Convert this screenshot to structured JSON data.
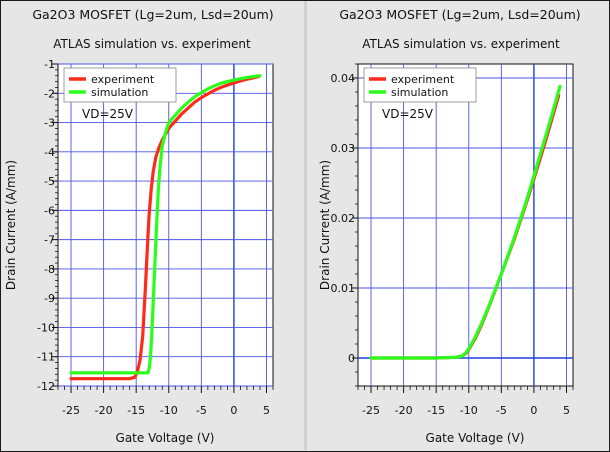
{
  "chart_data": [
    {
      "type": "line",
      "title": "Ga2O3 MOSFET (Lg=2um, Lsd=20um)",
      "subtitle": "ATLAS simulation vs. experiment",
      "annotation": "VD=25V",
      "xlabel": "Gate Voltage (V)",
      "ylabel": "Drain Current (A/mm)",
      "xlim": [
        -27,
        6
      ],
      "ylim": [
        -12,
        -1
      ],
      "xticks": [
        -25,
        -20,
        -15,
        -10,
        -5,
        0,
        5
      ],
      "yticks": [
        -1,
        -2,
        -3,
        -4,
        -5,
        -6,
        -7,
        -8,
        -9,
        -10,
        -11,
        -12
      ],
      "grid": true,
      "legend_position": "top-left",
      "series": [
        {
          "name": "experiment",
          "color": "#ff2a1a",
          "x": [
            -25,
            -20,
            -16,
            -15.2,
            -14.8,
            -14.4,
            -14.0,
            -13.8,
            -13.6,
            -13.4,
            -13.2,
            -13.0,
            -12.7,
            -12.4,
            -12.0,
            -11.5,
            -11.0,
            -10.0,
            -9.0,
            -8.0,
            -7.0,
            -6.0,
            -5.0,
            -4.0,
            -3.0,
            -2.0,
            -1.0,
            0.0,
            1.0,
            2.0,
            3.0,
            3.8
          ],
          "y": [
            -11.75,
            -11.75,
            -11.75,
            -11.7,
            -11.5,
            -11.1,
            -10.3,
            -9.5,
            -8.7,
            -7.8,
            -6.9,
            -6.1,
            -5.3,
            -4.7,
            -4.2,
            -3.85,
            -3.6,
            -3.2,
            -2.95,
            -2.7,
            -2.5,
            -2.3,
            -2.15,
            -2.02,
            -1.9,
            -1.8,
            -1.72,
            -1.65,
            -1.58,
            -1.52,
            -1.47,
            -1.43
          ]
        },
        {
          "name": "simulation",
          "color": "#2aff1a",
          "x": [
            -25,
            -20,
            -14,
            -13.2,
            -13.0,
            -12.8,
            -12.6,
            -12.4,
            -12.2,
            -12.0,
            -11.8,
            -11.6,
            -11.3,
            -11.0,
            -10.5,
            -10.0,
            -9.0,
            -8.0,
            -7.0,
            -6.0,
            -5.0,
            -4.0,
            -3.0,
            -2.0,
            -1.0,
            0.0,
            1.0,
            2.0,
            3.0,
            4.0
          ],
          "y": [
            -11.55,
            -11.55,
            -11.55,
            -11.55,
            -11.4,
            -11.0,
            -10.2,
            -9.2,
            -8.2,
            -7.2,
            -6.2,
            -5.3,
            -4.4,
            -3.8,
            -3.35,
            -3.0,
            -2.75,
            -2.5,
            -2.3,
            -2.12,
            -1.98,
            -1.85,
            -1.75,
            -1.66,
            -1.6,
            -1.55,
            -1.5,
            -1.46,
            -1.43,
            -1.4
          ]
        }
      ]
    },
    {
      "type": "line",
      "title": "Ga2O3 MOSFET (Lg=2um, Lsd=20um)",
      "subtitle": "ATLAS simulation vs. experiment",
      "annotation": "VD=25V",
      "xlabel": "Gate Voltage (V)",
      "ylabel": "Drain Current (A/mm)",
      "xlim": [
        -27,
        6
      ],
      "ylim": [
        -0.004,
        0.042
      ],
      "xticks": [
        -25,
        -20,
        -15,
        -10,
        -5,
        0,
        5
      ],
      "yticks": [
        0,
        0.01,
        0.02,
        0.03,
        0.04
      ],
      "ytick_labels": [
        "0",
        "0.01",
        "0.02",
        "0.03",
        "0.04"
      ],
      "grid": true,
      "legend_position": "top-left",
      "series": [
        {
          "name": "experiment",
          "color": "#ff2a1a",
          "x": [
            -25,
            -20,
            -15,
            -12,
            -11,
            -10.5,
            -10,
            -9,
            -8,
            -7,
            -6,
            -5,
            -4,
            -3,
            -2,
            -1,
            0,
            1,
            2,
            3,
            3.8
          ],
          "y": [
            0,
            0,
            0,
            0.0001,
            0.0003,
            0.0006,
            0.0012,
            0.0028,
            0.0048,
            0.0071,
            0.0095,
            0.012,
            0.0145,
            0.017,
            0.0198,
            0.0226,
            0.0256,
            0.0286,
            0.0317,
            0.0349,
            0.0375
          ]
        },
        {
          "name": "simulation",
          "color": "#2aff1a",
          "x": [
            -25,
            -20,
            -15,
            -12,
            -11,
            -10.5,
            -10,
            -9,
            -8,
            -7,
            -6,
            -5,
            -4,
            -3,
            -2,
            -1,
            0,
            1,
            2,
            3,
            4
          ],
          "y": [
            0,
            0,
            0,
            0.0001,
            0.0003,
            0.0007,
            0.0013,
            0.003,
            0.005,
            0.0072,
            0.0096,
            0.012,
            0.0146,
            0.0172,
            0.02,
            0.0229,
            0.026,
            0.0292,
            0.0323,
            0.0355,
            0.0388
          ]
        }
      ]
    }
  ]
}
